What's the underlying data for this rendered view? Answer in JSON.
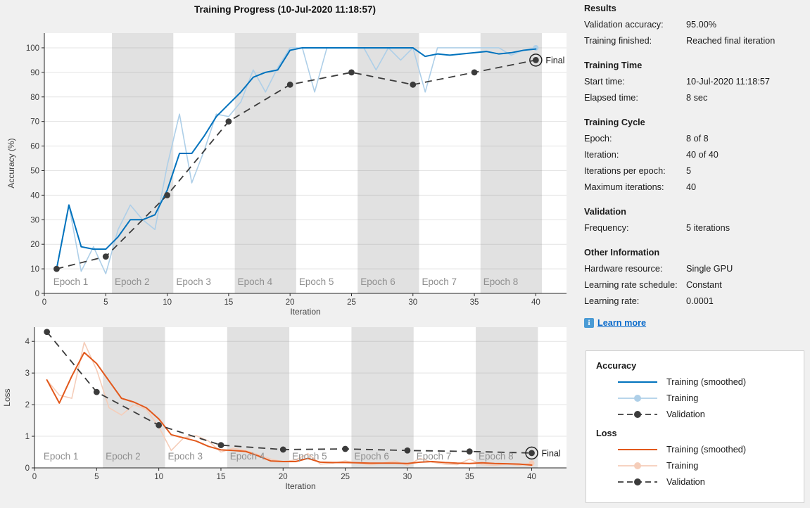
{
  "title": "Training Progress (10-Jul-2020 11:18:57)",
  "colors": {
    "blue": "#0072BD",
    "blue_light": "#AECFE8",
    "orange": "#E2581B",
    "orange_light": "#F5CDB9",
    "validation": "#3B3B3B",
    "band": "#E1E1E1",
    "grid": "rgba(130,130,130,0.22)",
    "spine": "#262626",
    "tick_text": "#3d3d3d",
    "epoch_text": "#8f8f8f",
    "final_text": "#1a1a1a",
    "link": "#0B6BCB",
    "background": "#F0F0F0"
  },
  "chart_data": [
    {
      "id": "accuracy",
      "type": "line",
      "title": "",
      "xlabel": "Iteration",
      "ylabel": "Accuracy (%)",
      "xlim": [
        0,
        42.5
      ],
      "ylim": [
        0,
        106
      ],
      "xticks": [
        0,
        5,
        10,
        15,
        20,
        25,
        30,
        35,
        40
      ],
      "yticks": [
        0,
        10,
        20,
        30,
        40,
        50,
        60,
        70,
        80,
        90,
        100
      ],
      "iterations_per_epoch": 5,
      "epoch_labels": [
        "Epoch 1",
        "Epoch 2",
        "Epoch 3",
        "Epoch 4",
        "Epoch 5",
        "Epoch 6",
        "Epoch 7",
        "Epoch 8"
      ],
      "final_label": "Final",
      "legend_position": "outside-right",
      "grid": true,
      "series": [
        {
          "name": "Training",
          "role": "raw",
          "color_key": "blue_light",
          "values": [
            10,
            36,
            9,
            19,
            8,
            26,
            36,
            30,
            26,
            52,
            73,
            45,
            58,
            73,
            72,
            78,
            91,
            82,
            92,
            100,
            100,
            82,
            100,
            100,
            100,
            100,
            91,
            100,
            95,
            100,
            82,
            100,
            100,
            100,
            100,
            100,
            100,
            97,
            99,
            100
          ]
        },
        {
          "name": "Training (smoothed)",
          "role": "smoothed",
          "color_key": "blue",
          "values": [
            10,
            36,
            19,
            18,
            18,
            23,
            30,
            30,
            32,
            42,
            57,
            57,
            64,
            72,
            77,
            82,
            88,
            90,
            91,
            99,
            100,
            100,
            100,
            100,
            100,
            100,
            100,
            100,
            100,
            100,
            96.5,
            97.5,
            97,
            97.5,
            98,
            98.5,
            97.5,
            98,
            99,
            99.5
          ]
        },
        {
          "name": "Validation",
          "role": "validation",
          "color_key": "validation",
          "x": [
            1,
            5,
            10,
            15,
            20,
            25,
            30,
            35,
            40
          ],
          "values": [
            10,
            15,
            40,
            70,
            85,
            90,
            85,
            90,
            95
          ]
        }
      ]
    },
    {
      "id": "loss",
      "type": "line",
      "title": "",
      "xlabel": "Iteration",
      "ylabel": "Loss",
      "xlim": [
        0,
        42.8
      ],
      "ylim": [
        0,
        4.45
      ],
      "xticks": [
        0,
        5,
        10,
        15,
        20,
        25,
        30,
        35,
        40
      ],
      "yticks": [
        0,
        1,
        2,
        3,
        4
      ],
      "iterations_per_epoch": 5,
      "epoch_labels": [
        "Epoch 1",
        "Epoch 2",
        "Epoch 3",
        "Epoch 4",
        "Epoch 5",
        "Epoch 6",
        "Epoch 7",
        "Epoch 8"
      ],
      "final_label": "Final",
      "legend_position": "outside-right",
      "grid": true,
      "series": [
        {
          "name": "Training",
          "role": "raw",
          "color_key": "orange_light",
          "values": [
            2.78,
            2.3,
            2.2,
            3.97,
            3.1,
            1.9,
            1.67,
            2.0,
            1.85,
            1.3,
            0.55,
            0.95,
            1.02,
            0.85,
            0.5,
            0.62,
            0.55,
            0.42,
            0.28,
            0.2,
            0.25,
            0.45,
            0.12,
            0.15,
            0.22,
            0.15,
            0.1,
            0.15,
            0.22,
            0.08,
            0.3,
            0.18,
            0.12,
            0.1,
            0.28,
            0.1,
            0.08,
            0.12,
            0.08,
            0.15
          ]
        },
        {
          "name": "Training (smoothed)",
          "role": "smoothed",
          "color_key": "orange",
          "values": [
            2.78,
            2.05,
            2.9,
            3.65,
            3.3,
            2.75,
            2.2,
            2.08,
            1.9,
            1.55,
            1.05,
            0.95,
            0.85,
            0.68,
            0.57,
            0.55,
            0.52,
            0.38,
            0.22,
            0.2,
            0.2,
            0.3,
            0.18,
            0.17,
            0.17,
            0.16,
            0.15,
            0.15,
            0.15,
            0.14,
            0.18,
            0.2,
            0.17,
            0.15,
            0.14,
            0.16,
            0.14,
            0.13,
            0.12,
            0.09
          ]
        },
        {
          "name": "Validation",
          "role": "validation",
          "color_key": "validation",
          "x": [
            1,
            5,
            10,
            15,
            20,
            25,
            30,
            35,
            40
          ],
          "values": [
            4.3,
            2.4,
            1.35,
            0.72,
            0.58,
            0.6,
            0.55,
            0.52,
            0.47
          ]
        }
      ]
    }
  ],
  "panel": {
    "sections": [
      {
        "title": "Results",
        "rows": [
          {
            "label": "Validation accuracy:",
            "value": "95.00%"
          },
          {
            "label": "Training finished:",
            "value": "Reached final iteration"
          }
        ]
      },
      {
        "title": "Training Time",
        "rows": [
          {
            "label": "Start time:",
            "value": "10-Jul-2020 11:18:57"
          },
          {
            "label": "Elapsed time:",
            "value": "8 sec"
          }
        ]
      },
      {
        "title": "Training Cycle",
        "rows": [
          {
            "label": "Epoch:",
            "value": "8 of 8"
          },
          {
            "label": "Iteration:",
            "value": "40 of 40"
          },
          {
            "label": "Iterations per epoch:",
            "value": "5"
          },
          {
            "label": "Maximum iterations:",
            "value": "40"
          }
        ]
      },
      {
        "title": "Validation",
        "rows": [
          {
            "label": "Frequency:",
            "value": "5 iterations"
          }
        ]
      },
      {
        "title": "Other Information",
        "rows": [
          {
            "label": "Hardware resource:",
            "value": "Single GPU"
          },
          {
            "label": "Learning rate schedule:",
            "value": "Constant"
          },
          {
            "label": "Learning rate:",
            "value": "0.0001"
          }
        ]
      }
    ],
    "learn_more_label": "Learn more",
    "info_icon_glyph": "i"
  },
  "legend": {
    "sections": [
      {
        "title": "Accuracy",
        "items": [
          "Training (smoothed)",
          "Training",
          "Validation"
        ]
      },
      {
        "title": "Loss",
        "items": [
          "Training (smoothed)",
          "Training",
          "Validation"
        ]
      }
    ]
  }
}
